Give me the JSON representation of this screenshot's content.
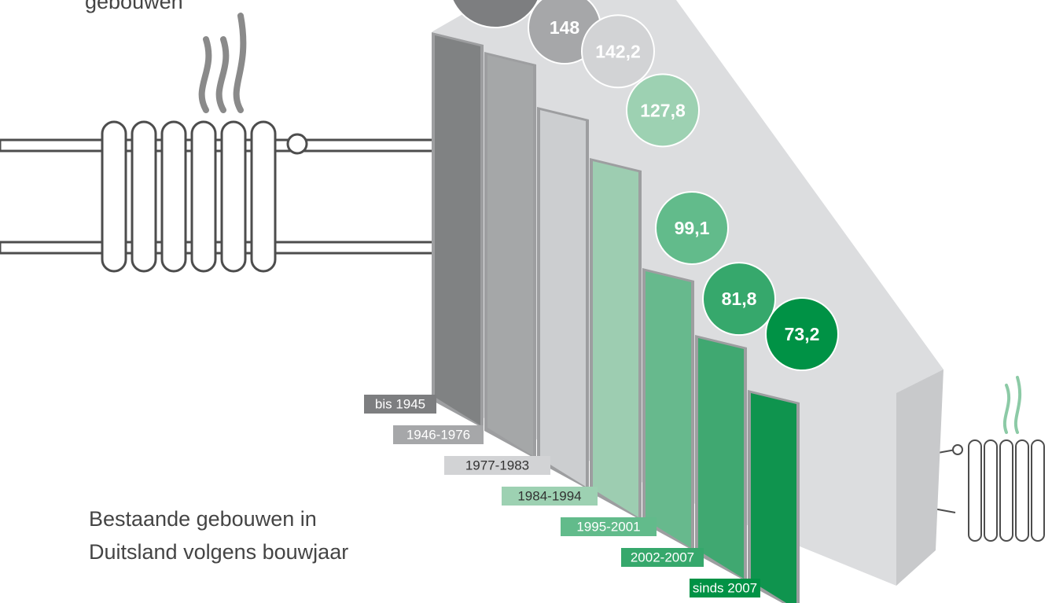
{
  "chart_data": {
    "type": "bubble-steps",
    "title": "gebouwen",
    "caption": [
      "Bestaande gebouwen in",
      "Duitsland volgens bouwjaar"
    ],
    "categories": [
      "bis 1945",
      "1946-1976",
      "1977-1983",
      "1984-1994",
      "1995-2001",
      "2002-2007",
      "sinds 2007"
    ],
    "values": [
      null,
      148,
      142.2,
      127.8,
      99.1,
      81.8,
      73.2
    ],
    "value_labels": [
      null,
      "148",
      "142,2",
      "127,8",
      "99,1",
      "81,8",
      "73,2"
    ],
    "colors": [
      "#7d7e80",
      "#a6a7a9",
      "#d2d3d5",
      "#9dd1b2",
      "#62bb8b",
      "#36a86c",
      "#009245"
    ]
  }
}
